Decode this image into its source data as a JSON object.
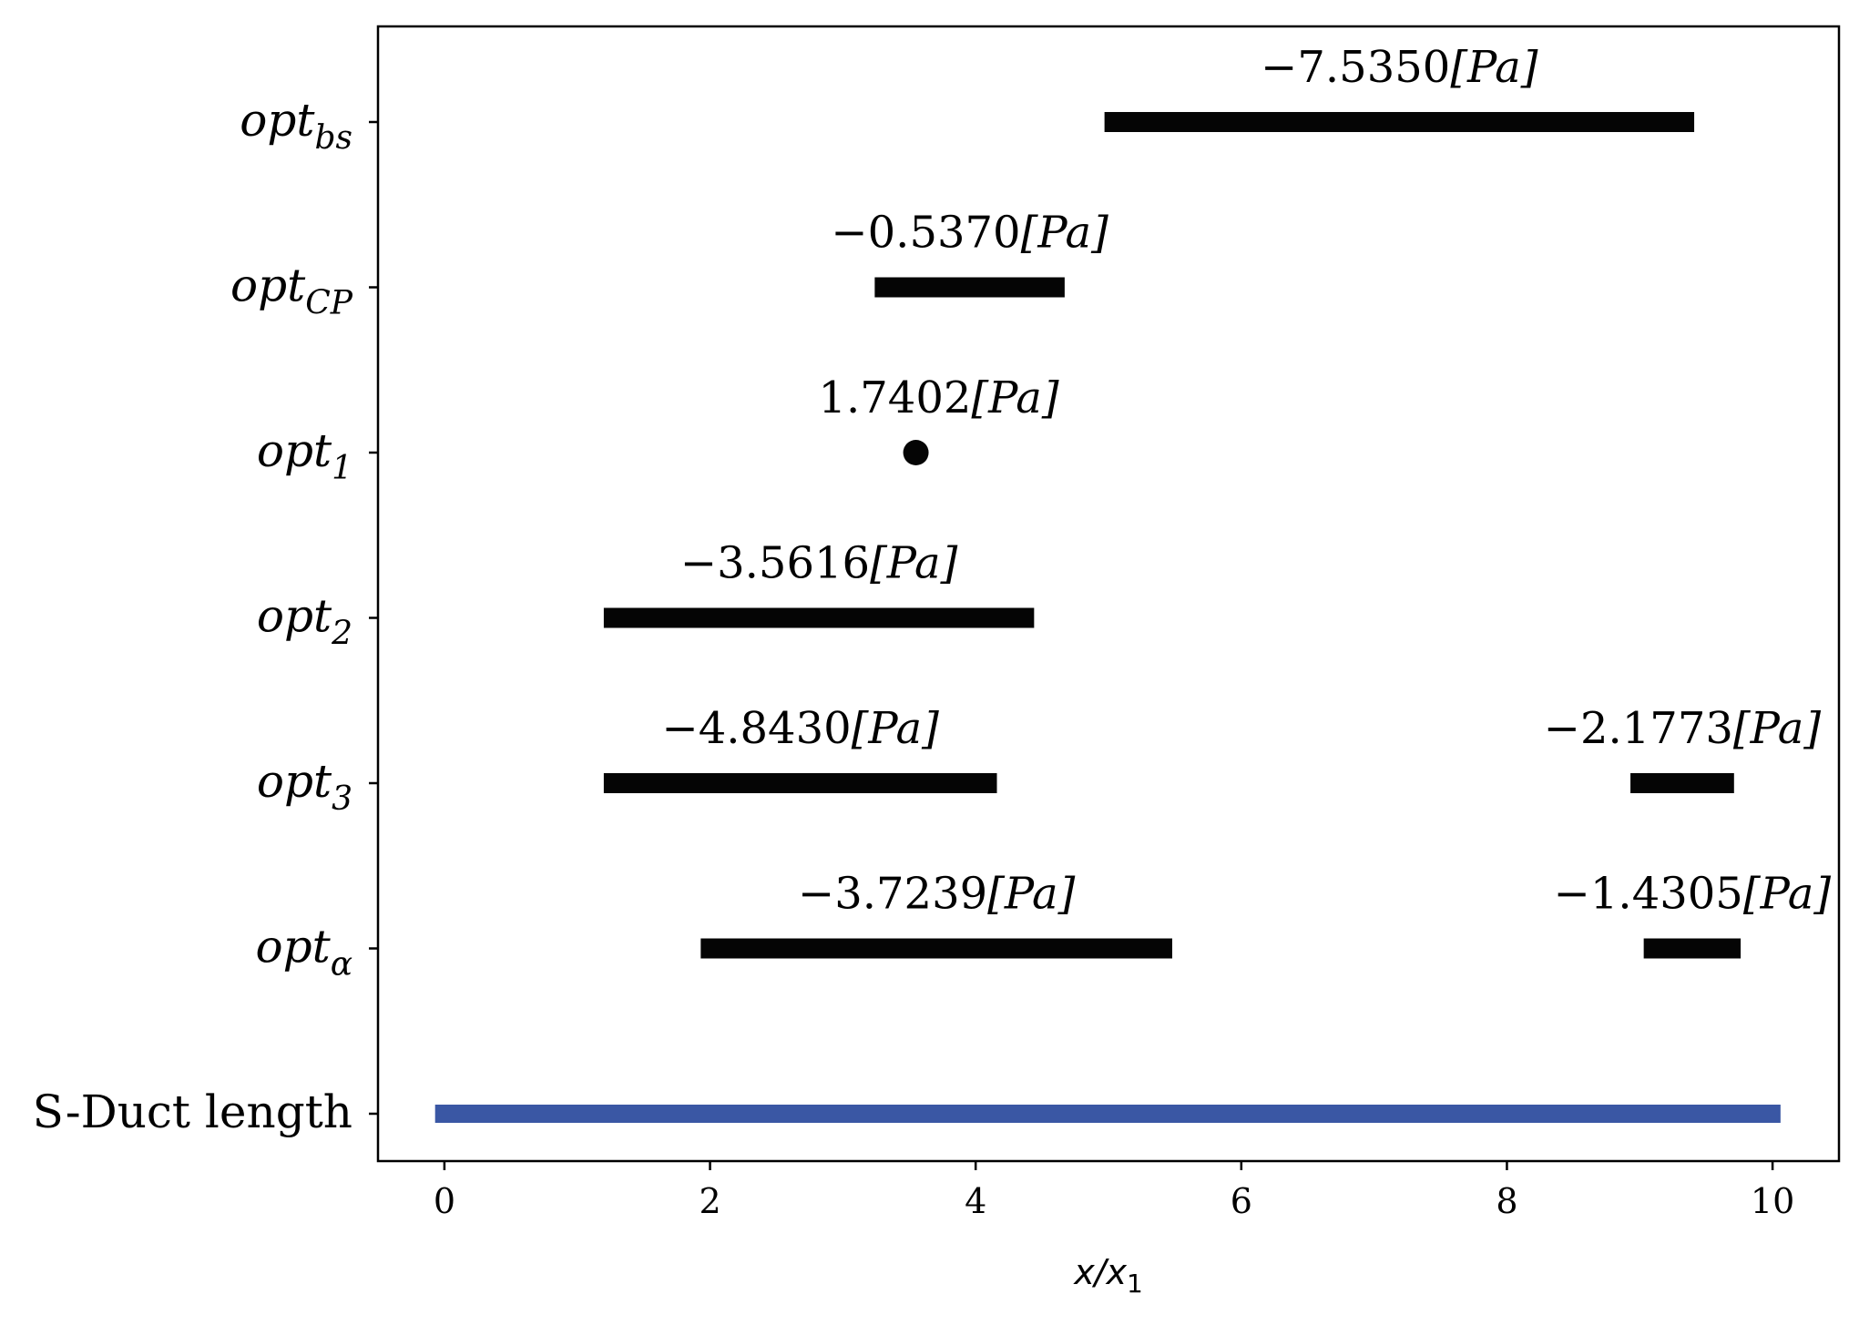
{
  "chart_data": {
    "type": "range-bar",
    "xlabel": "x/x",
    "xlabel_sub": "1",
    "xlim": [
      -0.5,
      10.5
    ],
    "xticks": [
      0,
      2,
      4,
      6,
      8,
      10
    ],
    "grid": false,
    "colors": {
      "segment": "#050505",
      "duct": "#3a57a4"
    },
    "rows": [
      {
        "label": "opt",
        "sub": "bs",
        "segments": [
          {
            "start": 4.97,
            "end": 9.41,
            "label": "−7.5350",
            "unit": "[Pa]"
          }
        ]
      },
      {
        "label": "opt",
        "sub": "CP",
        "segments": [
          {
            "start": 3.24,
            "end": 4.67,
            "label": "−0.5370",
            "unit": "[Pa]"
          }
        ]
      },
      {
        "label": "opt",
        "sub": "1",
        "points": [
          {
            "x": 3.55,
            "label": "1.7402",
            "unit": "[Pa]"
          }
        ]
      },
      {
        "label": "opt",
        "sub": "2",
        "segments": [
          {
            "start": 1.2,
            "end": 4.44,
            "label": "−3.5616",
            "unit": "[Pa]"
          }
        ]
      },
      {
        "label": "opt",
        "sub": "3",
        "segments": [
          {
            "start": 1.2,
            "end": 4.16,
            "label": "−4.8430",
            "unit": "[Pa]"
          },
          {
            "start": 8.93,
            "end": 9.71,
            "label": "−2.1773",
            "unit": "[Pa]"
          }
        ]
      },
      {
        "label": "opt",
        "sub": "α",
        "segments": [
          {
            "start": 1.93,
            "end": 5.48,
            "label": "−3.7239",
            "unit": "[Pa]"
          },
          {
            "start": 9.03,
            "end": 9.76,
            "label": "−1.4305",
            "unit": "[Pa]"
          }
        ]
      },
      {
        "label": "S-Duct length",
        "sub": "",
        "duct": true,
        "segments": [
          {
            "start": -0.07,
            "end": 10.06
          }
        ]
      }
    ]
  }
}
